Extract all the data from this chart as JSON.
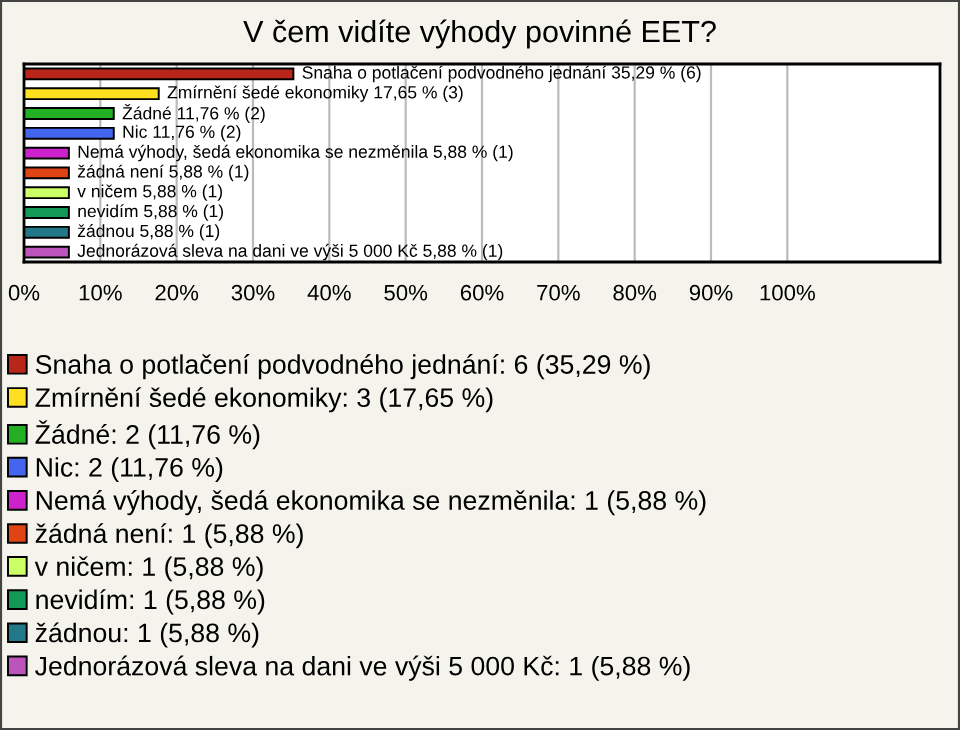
{
  "chart_data": {
    "type": "bar",
    "orientation": "horizontal",
    "title": "V čem vidíte výhody povinné EET?",
    "categories": [
      null,
      null,
      null,
      null,
      null,
      null,
      null,
      null,
      null,
      null
    ],
    "xlim": [
      0,
      120
    ],
    "xticks": [
      {
        "value": 0,
        "label": "0%"
      },
      {
        "value": 10,
        "label": "10%"
      },
      {
        "value": 20,
        "label": "20%"
      },
      {
        "value": 30,
        "label": "30%"
      },
      {
        "value": 40,
        "label": "40%"
      },
      {
        "value": 50,
        "label": "50%"
      },
      {
        "value": 60,
        "label": "60%"
      },
      {
        "value": 70,
        "label": "70%"
      },
      {
        "value": 80,
        "label": "80%"
      },
      {
        "value": 90,
        "label": "90%"
      },
      {
        "value": 100,
        "label": "100%"
      }
    ],
    "grid": "x",
    "legend": "bottom",
    "series": [
      {
        "name": "Snaha o potlačení podvodného jednání: 6 (35,29 %)",
        "color": "#b8261a",
        "values": [
          35.29,
          null,
          null,
          null,
          null,
          null,
          null,
          null,
          null,
          null
        ],
        "value_labels": [
          "Snaha o potlačení podvodného jednání 35,29 % (6)",
          null,
          null,
          null,
          null,
          null,
          null,
          null,
          null,
          null
        ]
      },
      {
        "name": "Zmírnění šedé ekonomiky: 3 (17,65 %)",
        "color": "#ffe020",
        "values": [
          null,
          17.65,
          null,
          null,
          null,
          null,
          null,
          null,
          null,
          null
        ],
        "value_labels": [
          null,
          "Zmírnění šedé ekonomiky 17,65 % (3)",
          null,
          null,
          null,
          null,
          null,
          null,
          null,
          null
        ]
      },
      {
        "name": "Žádné: 2 (11,76 %)",
        "color": "#22b022",
        "values": [
          null,
          null,
          11.76,
          null,
          null,
          null,
          null,
          null,
          null,
          null
        ],
        "value_labels": [
          null,
          null,
          "Žádné 11,76 % (2)",
          null,
          null,
          null,
          null,
          null,
          null,
          null
        ]
      },
      {
        "name": "Nic: 2 (11,76 %)",
        "color": "#4466ee",
        "values": [
          null,
          null,
          null,
          11.76,
          null,
          null,
          null,
          null,
          null,
          null
        ],
        "value_labels": [
          null,
          null,
          null,
          "Nic 11,76 % (2)",
          null,
          null,
          null,
          null,
          null,
          null
        ]
      },
      {
        "name": "Nemá výhody, šedá ekonomika se nezměnila: 1 (5,88 %)",
        "color": "#cc22cc",
        "values": [
          null,
          null,
          null,
          null,
          5.88,
          null,
          null,
          null,
          null,
          null
        ],
        "value_labels": [
          null,
          null,
          null,
          null,
          "Nemá výhody, šedá ekonomika se nezměnila 5,88 % (1)",
          null,
          null,
          null,
          null,
          null
        ]
      },
      {
        "name": "žádná není: 1 (5,88 %)",
        "color": "#e04414",
        "values": [
          null,
          null,
          null,
          null,
          null,
          5.88,
          null,
          null,
          null,
          null
        ],
        "value_labels": [
          null,
          null,
          null,
          null,
          null,
          "žádná není 5,88 % (1)",
          null,
          null,
          null,
          null
        ]
      },
      {
        "name": "v ničem: 1 (5,88 %)",
        "color": "#ccff66",
        "values": [
          null,
          null,
          null,
          null,
          null,
          null,
          5.88,
          null,
          null,
          null
        ],
        "value_labels": [
          null,
          null,
          null,
          null,
          null,
          null,
          "v ničem 5,88 % (1)",
          null,
          null,
          null
        ]
      },
      {
        "name": "nevidím: 1 (5,88 %)",
        "color": "#119955",
        "values": [
          null,
          null,
          null,
          null,
          null,
          null,
          null,
          5.88,
          null,
          null
        ],
        "value_labels": [
          null,
          null,
          null,
          null,
          null,
          null,
          null,
          "nevidím 5,88 % (1)",
          null,
          null
        ]
      },
      {
        "name": "žádnou: 1 (5,88 %)",
        "color": "#227788",
        "values": [
          null,
          null,
          null,
          null,
          null,
          null,
          null,
          null,
          5.88,
          null
        ],
        "value_labels": [
          null,
          null,
          null,
          null,
          null,
          null,
          null,
          null,
          "žádnou 5,88 % (1)",
          null
        ]
      },
      {
        "name": "Jednorázová sleva na dani ve výši 5 000 Kč: 1 (5,88 %)",
        "color": "#bb55bb",
        "values": [
          null,
          null,
          null,
          null,
          null,
          null,
          null,
          null,
          null,
          5.88
        ],
        "value_labels": [
          null,
          null,
          null,
          null,
          null,
          null,
          null,
          null,
          null,
          "Jednorázová sleva na dani ve výši 5 000 Kč 5,88 % (1)"
        ]
      }
    ]
  }
}
